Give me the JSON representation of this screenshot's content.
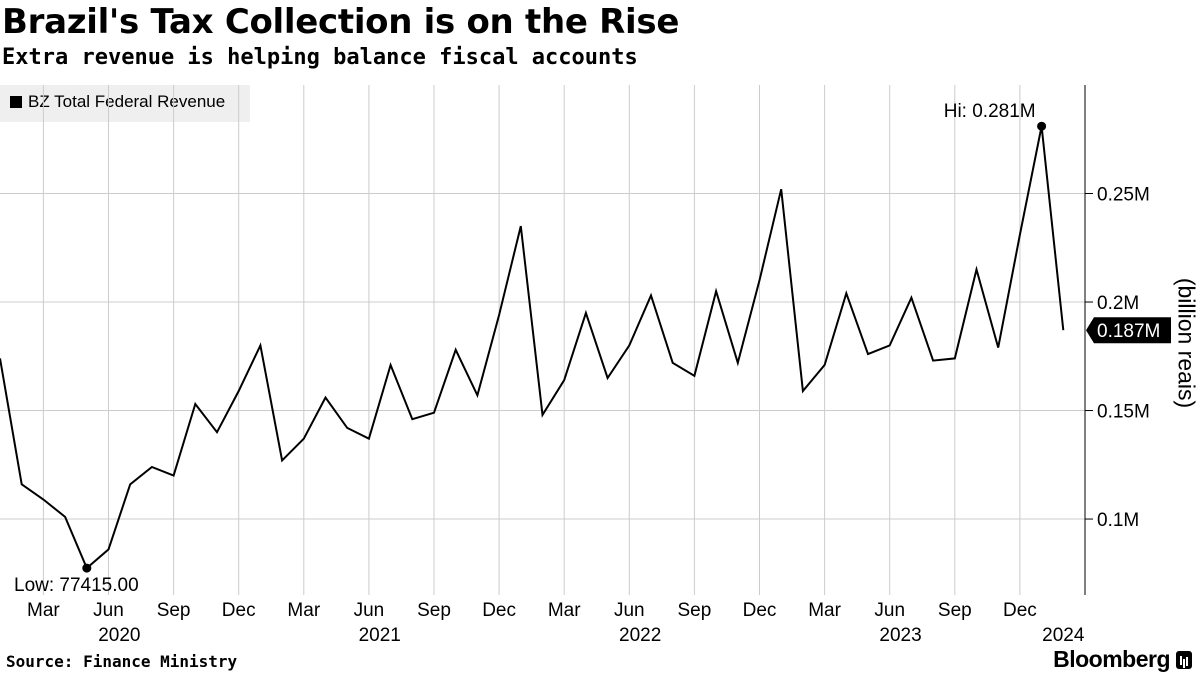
{
  "header": {
    "title": "Brazil's Tax Collection is on the Rise",
    "subtitle": "Extra revenue is helping balance fiscal accounts"
  },
  "footer": {
    "source": "Source: Finance Ministry",
    "brand": "Bloomberg",
    "brand_icon": "bloomberg-terminal-icon"
  },
  "legend": {
    "label": "BZ Total Federal Revenue",
    "placement": "top-left"
  },
  "colors": {
    "line": "#000000",
    "grid": "#cccccc",
    "legend_bg": "#efefef",
    "last_value_tag": "#000000"
  },
  "chart_data": {
    "type": "line",
    "title": "Brazil's Tax Collection is on the Rise",
    "subtitle": "Extra revenue is helping balance fiscal accounts",
    "xlabel": "",
    "ylabel": "(billion reais)",
    "ylim": [
      0.065,
      0.3
    ],
    "grid": true,
    "yticks": [
      {
        "value": 0.1,
        "label": "0.1M"
      },
      {
        "value": 0.15,
        "label": "0.15M"
      },
      {
        "value": 0.2,
        "label": "0.2M"
      },
      {
        "value": 0.25,
        "label": "0.25M"
      }
    ],
    "month_ticks": [
      {
        "index": 2,
        "label": "Mar"
      },
      {
        "index": 5,
        "label": "Jun"
      },
      {
        "index": 8,
        "label": "Sep"
      },
      {
        "index": 11,
        "label": "Dec"
      },
      {
        "index": 14,
        "label": "Mar"
      },
      {
        "index": 17,
        "label": "Jun"
      },
      {
        "index": 20,
        "label": "Sep"
      },
      {
        "index": 23,
        "label": "Dec"
      },
      {
        "index": 26,
        "label": "Mar"
      },
      {
        "index": 29,
        "label": "Jun"
      },
      {
        "index": 32,
        "label": "Sep"
      },
      {
        "index": 35,
        "label": "Dec"
      },
      {
        "index": 38,
        "label": "Mar"
      },
      {
        "index": 41,
        "label": "Jun"
      },
      {
        "index": 44,
        "label": "Sep"
      },
      {
        "index": 47,
        "label": "Dec"
      }
    ],
    "year_ticks": [
      {
        "index": 5.5,
        "label": "2020"
      },
      {
        "index": 17.5,
        "label": "2021"
      },
      {
        "index": 29.5,
        "label": "2022"
      },
      {
        "index": 41.5,
        "label": "2023"
      },
      {
        "index": 49,
        "label": "2024"
      }
    ],
    "series": [
      {
        "name": "BZ Total Federal Revenue",
        "x_start": "2020-01",
        "x": [
          "2020-01",
          "2020-02",
          "2020-03",
          "2020-04",
          "2020-05",
          "2020-06",
          "2020-07",
          "2020-08",
          "2020-09",
          "2020-10",
          "2020-11",
          "2020-12",
          "2021-01",
          "2021-02",
          "2021-03",
          "2021-04",
          "2021-05",
          "2021-06",
          "2021-07",
          "2021-08",
          "2021-09",
          "2021-10",
          "2021-11",
          "2021-12",
          "2022-01",
          "2022-02",
          "2022-03",
          "2022-04",
          "2022-05",
          "2022-06",
          "2022-07",
          "2022-08",
          "2022-09",
          "2022-10",
          "2022-11",
          "2022-12",
          "2023-01",
          "2023-02",
          "2023-03",
          "2023-04",
          "2023-05",
          "2023-06",
          "2023-07",
          "2023-08",
          "2023-09",
          "2023-10",
          "2023-11",
          "2023-12",
          "2024-01",
          "2024-02"
        ],
        "values": [
          0.174,
          0.116,
          0.109,
          0.101,
          0.0774,
          0.086,
          0.116,
          0.124,
          0.12,
          0.153,
          0.14,
          0.159,
          0.18,
          0.127,
          0.137,
          0.156,
          0.142,
          0.137,
          0.171,
          0.146,
          0.149,
          0.178,
          0.157,
          0.194,
          0.235,
          0.148,
          0.164,
          0.195,
          0.165,
          0.18,
          0.203,
          0.172,
          0.166,
          0.205,
          0.172,
          0.21,
          0.252,
          0.159,
          0.171,
          0.204,
          0.176,
          0.18,
          0.202,
          0.173,
          0.174,
          0.215,
          0.179,
          0.231,
          0.281,
          0.187
        ]
      }
    ],
    "annotations": {
      "high": {
        "index": 48,
        "value": 0.281,
        "label": "Hi: 0.281M"
      },
      "low": {
        "index": 4,
        "value": 0.0774,
        "label": "Low: 77415.00"
      },
      "last": {
        "index": 49,
        "value": 0.187,
        "label": "0.187M"
      }
    }
  }
}
